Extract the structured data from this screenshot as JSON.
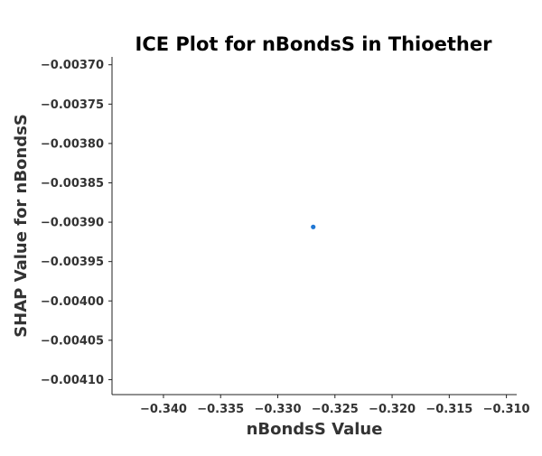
{
  "chart_data": {
    "type": "scatter",
    "title": "ICE Plot for nBondsS in Thioether",
    "xlabel": "nBondsS Value",
    "ylabel": "SHAP Value for nBondsS",
    "xlim": [
      -0.3445,
      -0.3091
    ],
    "ylim": [
      -0.004119,
      -0.00369
    ],
    "x_ticks": [
      -0.34,
      -0.335,
      -0.33,
      -0.325,
      -0.32,
      -0.315,
      -0.31
    ],
    "x_tick_labels": [
      "−0.340",
      "−0.335",
      "−0.330",
      "−0.325",
      "−0.320",
      "−0.315",
      "−0.310"
    ],
    "y_ticks": [
      -0.0037,
      -0.00375,
      -0.0038,
      -0.00385,
      -0.0039,
      -0.00395,
      -0.004,
      -0.00405,
      -0.0041
    ],
    "y_tick_labels": [
      "−0.00370",
      "−0.00375",
      "−0.00380",
      "−0.00385",
      "−0.00390",
      "−0.00395",
      "−0.00400",
      "−0.00405",
      "−0.00410"
    ],
    "points": [
      {
        "x": -0.3269,
        "y": -0.003906
      }
    ],
    "point_color": "#1f77d4",
    "grid": false,
    "legend": "none"
  }
}
